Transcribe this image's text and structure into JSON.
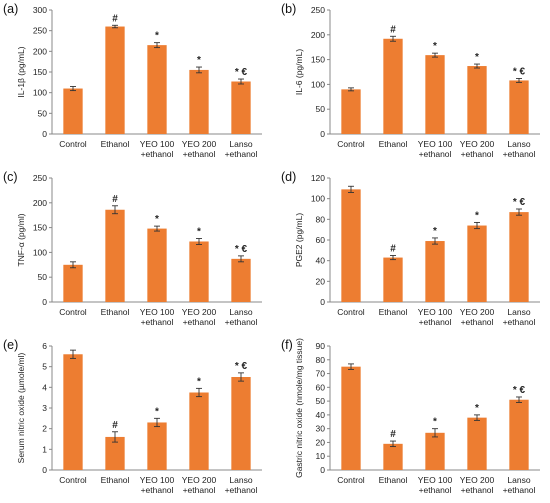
{
  "style": {
    "bar_color": "#ED7D31",
    "error_color": "#333333",
    "axis_color": "#888888"
  },
  "chart_data": [
    {
      "type": "bar",
      "panel_label": "(a)",
      "ylabel": "IL-1β (pg/mL)",
      "ylim": [
        0,
        300
      ],
      "yticks": [
        0,
        50,
        100,
        150,
        200,
        250,
        300
      ],
      "categories": [
        "Control",
        "Ethanol",
        "YEO 100\n+ethanol",
        "YEO 200\n+ethanol",
        "Lanso\n+ethanol"
      ],
      "values": [
        110,
        260,
        215,
        155,
        127
      ],
      "errors": [
        5,
        3,
        6,
        7,
        6
      ],
      "significance": [
        "",
        "#",
        "*",
        "*",
        "* €"
      ]
    },
    {
      "type": "bar",
      "panel_label": "(b)",
      "ylabel": "IL-6 (pg/mL)",
      "ylim": [
        0,
        250
      ],
      "yticks": [
        0,
        50,
        100,
        150,
        200,
        250
      ],
      "categories": [
        "Control",
        "Ethanol",
        "YEO 100\n+ethanol",
        "YEO 200\n+ethanol",
        "Lanso\n+ethanol"
      ],
      "values": [
        90,
        192,
        159,
        137,
        108
      ],
      "errors": [
        3,
        5,
        4,
        4,
        4
      ],
      "significance": [
        "",
        "#",
        "*",
        "*",
        "* €"
      ]
    },
    {
      "type": "bar",
      "panel_label": "(c)",
      "ylabel": "TNF-α (pg/ml)",
      "ylim": [
        0,
        250
      ],
      "yticks": [
        0,
        50,
        100,
        150,
        200,
        250
      ],
      "categories": [
        "Control",
        "Ethanol",
        "YEO 100\n+ethanol",
        "YEO 200\n+ethanol",
        "Lanso\n+ethanol"
      ],
      "values": [
        75,
        186,
        148,
        122,
        87
      ],
      "errors": [
        6,
        8,
        5,
        6,
        6
      ],
      "significance": [
        "",
        "#",
        "*",
        "*",
        "* €"
      ]
    },
    {
      "type": "bar",
      "panel_label": "(d)",
      "ylabel": "PGE2 (pg/mL)",
      "ylim": [
        0,
        120
      ],
      "yticks": [
        0,
        20,
        40,
        60,
        80,
        100,
        120
      ],
      "categories": [
        "Control",
        "Ethanol",
        "YEO 100\n+ethanol",
        "YEO 200\n+ethanol",
        "Lanso\n+ethanol"
      ],
      "values": [
        109,
        43,
        59,
        74,
        87
      ],
      "errors": [
        3,
        2,
        3,
        3,
        3
      ],
      "significance": [
        "",
        "#",
        "*",
        "*",
        "* €"
      ]
    },
    {
      "type": "bar",
      "panel_label": "(e)",
      "ylabel": "Serum nitric oxide (µmole/ml)",
      "ylim": [
        0,
        6
      ],
      "yticks": [
        0,
        1,
        2,
        3,
        4,
        5,
        6
      ],
      "categories": [
        "Control",
        "Ethanol",
        "YEO 100\n+ethanol",
        "YEO 200\n+ethanol",
        "Lanso\n+ethanol"
      ],
      "values": [
        5.6,
        1.6,
        2.3,
        3.75,
        4.5
      ],
      "errors": [
        0.2,
        0.25,
        0.2,
        0.2,
        0.2
      ],
      "significance": [
        "",
        "#",
        "*",
        "*",
        "* €"
      ]
    },
    {
      "type": "bar",
      "panel_label": "(f)",
      "ylabel": "Gastric nitric oxide (nmole/mg tissue)",
      "ylim": [
        0,
        90
      ],
      "yticks": [
        0,
        10,
        20,
        30,
        40,
        50,
        60,
        70,
        80,
        90
      ],
      "categories": [
        "Control",
        "Ethanol",
        "YEO 100\n+ethanol",
        "YEO 200\n+ethanol",
        "Lanso\n+ethanol"
      ],
      "values": [
        75,
        19,
        27,
        38,
        51
      ],
      "errors": [
        2,
        2,
        3,
        2,
        2
      ],
      "significance": [
        "",
        "#",
        "*",
        "*",
        "* €"
      ]
    }
  ]
}
